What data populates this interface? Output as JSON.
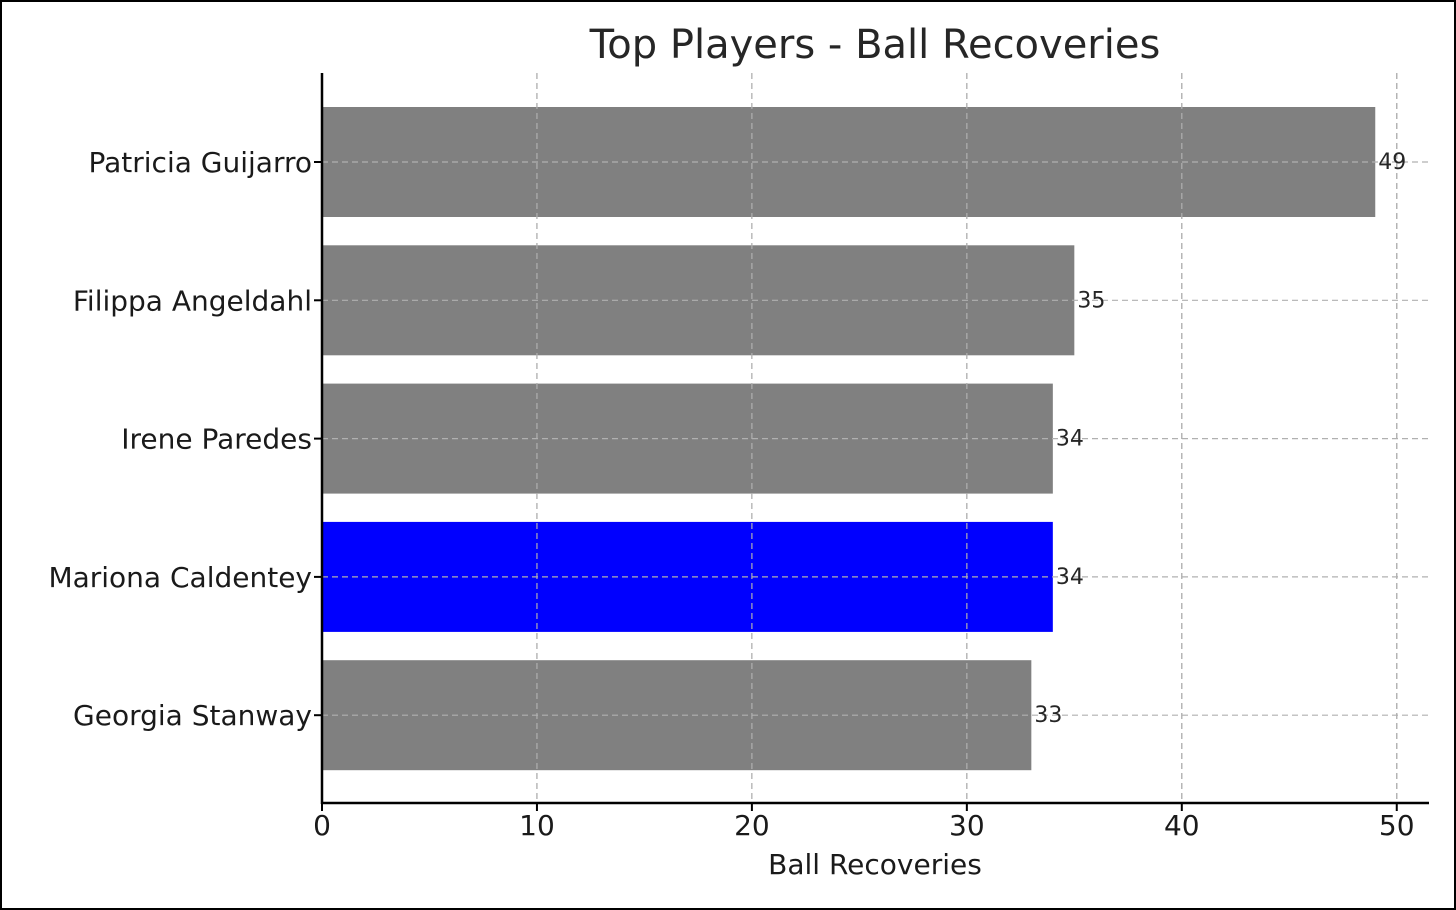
{
  "chart_data": {
    "type": "bar",
    "orientation": "horizontal",
    "title": "Top Players - Ball Recoveries",
    "xlabel": "Ball Recoveries",
    "ylabel": "",
    "categories": [
      "Patricia Guijarro",
      "Filippa Angeldahl",
      "Irene Paredes",
      "Mariona Caldentey",
      "Georgia Stanway"
    ],
    "values": [
      49,
      35,
      34,
      34,
      33
    ],
    "highlight": "Mariona Caldentey",
    "colors": {
      "default": "#808080",
      "highlight": "#0000ff"
    },
    "xlim": [
      0,
      51.5
    ],
    "xticks": [
      0,
      10,
      20,
      30,
      40,
      50
    ],
    "grid": true,
    "legend": "none"
  }
}
